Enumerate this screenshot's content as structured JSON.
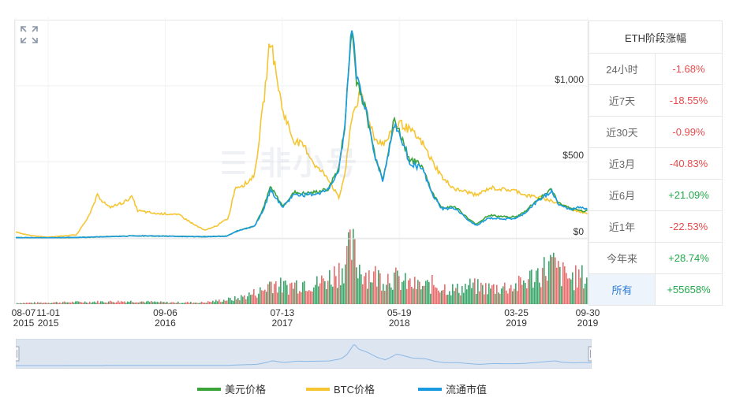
{
  "chart_data": {
    "type": "line",
    "title": "",
    "y_axis": {
      "ticks": [
        "$1,000",
        "$500",
        "$0"
      ],
      "tick_values": [
        1000,
        500,
        0
      ],
      "ylim": [
        0,
        1450
      ]
    },
    "x_axis": {
      "ticks": [
        {
          "date": "08-07",
          "year": "2015"
        },
        {
          "date": "11-01",
          "year": "2015"
        },
        {
          "date": "09-06",
          "year": "2016"
        },
        {
          "date": "07-13",
          "year": "2017"
        },
        {
          "date": "05-19",
          "year": "2018"
        },
        {
          "date": "03-25",
          "year": "2019"
        },
        {
          "date": "09-30",
          "year": "2019"
        }
      ],
      "range": [
        "2015-08-07",
        "2019-09-30"
      ]
    },
    "series": [
      {
        "name": "美元价格",
        "color": "#3aa33a",
        "points": [
          [
            "2015-08-07",
            2
          ],
          [
            "2015-11-01",
            1
          ],
          [
            "2016-02-15",
            5
          ],
          [
            "2016-06-15",
            14
          ],
          [
            "2016-09-06",
            12
          ],
          [
            "2016-12-15",
            8
          ],
          [
            "2017-02-15",
            12
          ],
          [
            "2017-03-15",
            45
          ],
          [
            "2017-05-01",
            80
          ],
          [
            "2017-05-25",
            200
          ],
          [
            "2017-06-12",
            340
          ],
          [
            "2017-07-13",
            210
          ],
          [
            "2017-08-15",
            300
          ],
          [
            "2017-09-10",
            290
          ],
          [
            "2017-10-10",
            300
          ],
          [
            "2017-11-10",
            320
          ],
          [
            "2017-12-10",
            460
          ],
          [
            "2017-12-25",
            720
          ],
          [
            "2018-01-13",
            1380
          ],
          [
            "2018-01-25",
            1050
          ],
          [
            "2018-02-15",
            880
          ],
          [
            "2018-03-15",
            550
          ],
          [
            "2018-04-05",
            390
          ],
          [
            "2018-04-25",
            620
          ],
          [
            "2018-05-05",
            780
          ],
          [
            "2018-05-19",
            700
          ],
          [
            "2018-06-15",
            520
          ],
          [
            "2018-07-20",
            470
          ],
          [
            "2018-08-15",
            290
          ],
          [
            "2018-09-10",
            200
          ],
          [
            "2018-10-15",
            205
          ],
          [
            "2018-11-20",
            120
          ],
          [
            "2018-12-10",
            90
          ],
          [
            "2019-01-10",
            150
          ],
          [
            "2019-02-20",
            140
          ],
          [
            "2019-03-25",
            138
          ],
          [
            "2019-04-15",
            170
          ],
          [
            "2019-05-15",
            240
          ],
          [
            "2019-06-26",
            320
          ],
          [
            "2019-07-15",
            230
          ],
          [
            "2019-08-15",
            190
          ],
          [
            "2019-09-10",
            180
          ],
          [
            "2019-09-30",
            176
          ]
        ]
      },
      {
        "name": "BTC价格",
        "color": "#f5c533",
        "points": [
          [
            "2015-08-07",
            40
          ],
          [
            "2015-09-15",
            15
          ],
          [
            "2015-11-01",
            5
          ],
          [
            "2016-01-15",
            20
          ],
          [
            "2016-02-20",
            160
          ],
          [
            "2016-03-10",
            280
          ],
          [
            "2016-04-10",
            200
          ],
          [
            "2016-05-15",
            230
          ],
          [
            "2016-06-10",
            270
          ],
          [
            "2016-06-25",
            180
          ],
          [
            "2016-08-10",
            160
          ],
          [
            "2016-09-06",
            160
          ],
          [
            "2016-10-15",
            150
          ],
          [
            "2016-11-20",
            90
          ],
          [
            "2016-12-20",
            50
          ],
          [
            "2017-01-20",
            80
          ],
          [
            "2017-02-20",
            130
          ],
          [
            "2017-03-10",
            330
          ],
          [
            "2017-04-10",
            360
          ],
          [
            "2017-05-01",
            420
          ],
          [
            "2017-05-25",
            900
          ],
          [
            "2017-06-12",
            1330
          ],
          [
            "2017-06-25",
            1100
          ],
          [
            "2017-07-13",
            850
          ],
          [
            "2017-08-10",
            650
          ],
          [
            "2017-09-10",
            600
          ],
          [
            "2017-10-10",
            470
          ],
          [
            "2017-11-10",
            400
          ],
          [
            "2017-12-10",
            260
          ],
          [
            "2017-12-28",
            450
          ],
          [
            "2018-01-13",
            800
          ],
          [
            "2018-02-05",
            950
          ],
          [
            "2018-02-20",
            850
          ],
          [
            "2018-03-15",
            650
          ],
          [
            "2018-04-10",
            620
          ],
          [
            "2018-05-05",
            720
          ],
          [
            "2018-05-19",
            760
          ],
          [
            "2018-06-20",
            700
          ],
          [
            "2018-07-20",
            620
          ],
          [
            "2018-08-15",
            500
          ],
          [
            "2018-09-15",
            380
          ],
          [
            "2018-10-15",
            320
          ],
          [
            "2018-11-20",
            300
          ],
          [
            "2018-12-10",
            280
          ],
          [
            "2019-01-15",
            330
          ],
          [
            "2019-02-15",
            320
          ],
          [
            "2019-03-25",
            310
          ],
          [
            "2019-04-20",
            280
          ],
          [
            "2019-05-20",
            270
          ],
          [
            "2019-06-20",
            250
          ],
          [
            "2019-07-20",
            220
          ],
          [
            "2019-08-20",
            190
          ],
          [
            "2019-09-30",
            160
          ]
        ]
      },
      {
        "name": "流通市值",
        "color": "#1a9ae0",
        "points": [
          [
            "2015-08-07",
            2
          ],
          [
            "2015-11-01",
            1
          ],
          [
            "2016-02-15",
            5
          ],
          [
            "2016-06-15",
            14
          ],
          [
            "2016-09-06",
            12
          ],
          [
            "2016-12-15",
            8
          ],
          [
            "2017-02-15",
            12
          ],
          [
            "2017-03-15",
            45
          ],
          [
            "2017-05-01",
            80
          ],
          [
            "2017-05-25",
            190
          ],
          [
            "2017-06-12",
            320
          ],
          [
            "2017-07-13",
            200
          ],
          [
            "2017-08-15",
            290
          ],
          [
            "2017-09-10",
            280
          ],
          [
            "2017-10-10",
            290
          ],
          [
            "2017-11-10",
            310
          ],
          [
            "2017-12-10",
            450
          ],
          [
            "2017-12-25",
            720
          ],
          [
            "2018-01-13",
            1420
          ],
          [
            "2018-01-25",
            1080
          ],
          [
            "2018-02-15",
            900
          ],
          [
            "2018-03-15",
            540
          ],
          [
            "2018-04-05",
            380
          ],
          [
            "2018-04-25",
            610
          ],
          [
            "2018-05-05",
            760
          ],
          [
            "2018-05-19",
            680
          ],
          [
            "2018-06-15",
            500
          ],
          [
            "2018-07-20",
            450
          ],
          [
            "2018-08-15",
            280
          ],
          [
            "2018-09-10",
            190
          ],
          [
            "2018-10-15",
            195
          ],
          [
            "2018-11-20",
            110
          ],
          [
            "2018-12-10",
            82
          ],
          [
            "2019-01-10",
            130
          ],
          [
            "2019-02-20",
            125
          ],
          [
            "2019-03-25",
            128
          ],
          [
            "2019-04-15",
            160
          ],
          [
            "2019-05-15",
            230
          ],
          [
            "2019-06-26",
            310
          ],
          [
            "2019-07-15",
            220
          ],
          [
            "2019-08-15",
            185
          ],
          [
            "2019-09-10",
            205
          ],
          [
            "2019-09-30",
            190
          ]
        ]
      }
    ],
    "volume": {
      "colors": {
        "up": "#3aa86a",
        "down": "#ee6b6b"
      },
      "points": [
        [
          "2015-08-07",
          2
        ],
        [
          "2016-02-15",
          4
        ],
        [
          "2016-06-15",
          5
        ],
        [
          "2016-09-06",
          3
        ],
        [
          "2016-12-15",
          3
        ],
        [
          "2017-03-15",
          10
        ],
        [
          "2017-05-25",
          25
        ],
        [
          "2017-06-12",
          40
        ],
        [
          "2017-07-13",
          30
        ],
        [
          "2017-08-15",
          35
        ],
        [
          "2017-09-10",
          40
        ],
        [
          "2017-10-10",
          35
        ],
        [
          "2017-11-10",
          45
        ],
        [
          "2017-12-10",
          60
        ],
        [
          "2017-12-25",
          75
        ],
        [
          "2018-01-13",
          100
        ],
        [
          "2018-01-25",
          70
        ],
        [
          "2018-02-15",
          55
        ],
        [
          "2018-03-15",
          50
        ],
        [
          "2018-04-05",
          45
        ],
        [
          "2018-04-25",
          50
        ],
        [
          "2018-05-19",
          40
        ],
        [
          "2018-06-15",
          35
        ],
        [
          "2018-07-20",
          30
        ],
        [
          "2018-08-15",
          35
        ],
        [
          "2018-09-10",
          30
        ],
        [
          "2018-10-15",
          25
        ],
        [
          "2018-11-20",
          32
        ],
        [
          "2018-12-10",
          30
        ],
        [
          "2019-01-10",
          28
        ],
        [
          "2019-02-20",
          30
        ],
        [
          "2019-03-25",
          32
        ],
        [
          "2019-04-15",
          40
        ],
        [
          "2019-05-15",
          52
        ],
        [
          "2019-06-26",
          70
        ],
        [
          "2019-07-15",
          55
        ],
        [
          "2019-08-15",
          45
        ],
        [
          "2019-09-10",
          48
        ],
        [
          "2019-09-30",
          44
        ]
      ]
    },
    "legend": {
      "position": "bottom"
    },
    "grid": true
  },
  "table": {
    "header": "ETH阶段涨幅",
    "rows": [
      {
        "label": "24小时",
        "value": "-1.68%",
        "up": false
      },
      {
        "label": "近7天",
        "value": "-18.55%",
        "up": false
      },
      {
        "label": "近30天",
        "value": "-0.99%",
        "up": false
      },
      {
        "label": "近3月",
        "value": "-40.83%",
        "up": false
      },
      {
        "label": "近6月",
        "value": "+21.09%",
        "up": true
      },
      {
        "label": "近1年",
        "value": "-22.53%",
        "up": false
      },
      {
        "label": "今年来",
        "value": "+28.74%",
        "up": true
      },
      {
        "label": "所有",
        "value": "+55658%",
        "up": true,
        "selected": true
      }
    ]
  },
  "icons": {
    "expand": "expand-icon"
  }
}
